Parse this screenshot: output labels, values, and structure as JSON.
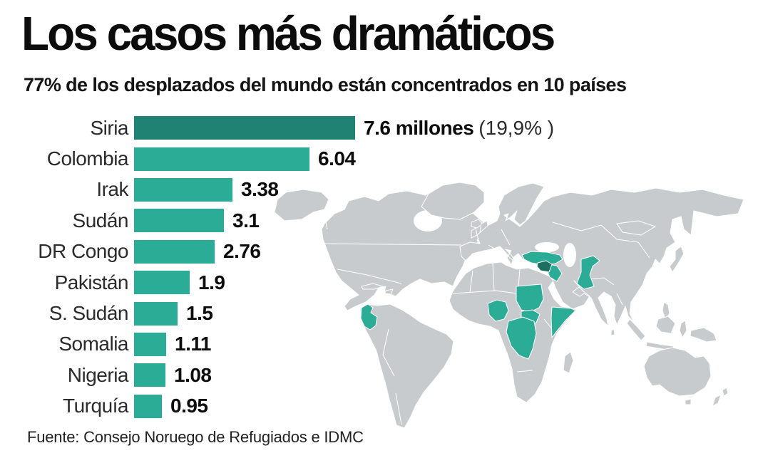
{
  "header": {
    "title": "Los casos más dramáticos",
    "subtitle": "77% de los desplazados del mundo están concentrados en 10 países"
  },
  "chart_data": {
    "type": "bar",
    "orientation": "horizontal",
    "title": "Los casos más dramáticos",
    "subtitle": "77% de los desplazados del mundo están concentrados en 10 países",
    "categories": [
      "Siria",
      "Colombia",
      "Irak",
      "Sudán",
      "DR Congo",
      "Pakistán",
      "S. Sudán",
      "Somalia",
      "Nigeria",
      "Turquía"
    ],
    "values": [
      7.6,
      6.04,
      3.38,
      3.1,
      2.76,
      1.9,
      1.5,
      1.11,
      1.08,
      0.95
    ],
    "value_labels": [
      "7.6 millones",
      "6.04",
      "3.38",
      "3.1",
      "2.76",
      "1.9",
      "1.5",
      "1.11",
      "1.08",
      "0.95"
    ],
    "annotation_first_bar": "(19,9% )",
    "xlim": [
      0,
      7.6
    ],
    "grid": false,
    "legend": false,
    "unit_hint": "millones de desplazados"
  },
  "rows": [
    {
      "label": "Siria",
      "value": 7.6,
      "value_label": "7.6 millones",
      "suffix": "(19,9% )",
      "emphasis": true
    },
    {
      "label": "Colombia",
      "value": 6.04,
      "value_label": "6.04",
      "suffix": "",
      "emphasis": false
    },
    {
      "label": "Irak",
      "value": 3.38,
      "value_label": "3.38",
      "suffix": "",
      "emphasis": false
    },
    {
      "label": "Sudán",
      "value": 3.1,
      "value_label": "3.1",
      "suffix": "",
      "emphasis": false
    },
    {
      "label": "DR Congo",
      "value": 2.76,
      "value_label": "2.76",
      "suffix": "",
      "emphasis": false
    },
    {
      "label": "Pakistán",
      "value": 1.9,
      "value_label": "1.9",
      "suffix": "",
      "emphasis": false
    },
    {
      "label": "S. Sudán",
      "value": 1.5,
      "value_label": "1.5",
      "suffix": "",
      "emphasis": false
    },
    {
      "label": "Somalia",
      "value": 1.11,
      "value_label": "1.11",
      "suffix": "",
      "emphasis": false
    },
    {
      "label": "Nigeria",
      "value": 1.08,
      "value_label": "1.08",
      "suffix": "",
      "emphasis": false
    },
    {
      "label": "Turquía",
      "value": 0.95,
      "value_label": "0.95",
      "suffix": "",
      "emphasis": false
    }
  ],
  "map": {
    "countries": [
      {
        "id": "colombia",
        "label": "Colombia",
        "emphasis": false
      },
      {
        "id": "turquia",
        "label": "Turquía",
        "emphasis": false
      },
      {
        "id": "siria",
        "label": "Siria",
        "emphasis": true
      },
      {
        "id": "irak",
        "label": "Irak",
        "emphasis": false
      },
      {
        "id": "pakistan",
        "label": "Pakistán",
        "emphasis": false
      },
      {
        "id": "nigeria",
        "label": "Nigeria",
        "emphasis": false
      },
      {
        "id": "sudan",
        "label": "Sudán",
        "emphasis": false
      },
      {
        "id": "ssudan",
        "label": "S. Sudán",
        "emphasis": false
      },
      {
        "id": "somalia",
        "label": "Somalia",
        "emphasis": false
      },
      {
        "id": "drcongo",
        "label": "DR Congo",
        "emphasis": false
      }
    ]
  },
  "source": {
    "label": "Fuente: Consejo Noruego de Refugiados e IDMC"
  },
  "colors": {
    "bar": "#2BAC96",
    "bar_emphasis": "#1F8273",
    "map_land": "#C8CBCE",
    "map_border": "#FFFFFF",
    "map_highlight": "#2BAC96",
    "map_highlight_emphasis": "#1D6F62",
    "text": "#111111"
  }
}
